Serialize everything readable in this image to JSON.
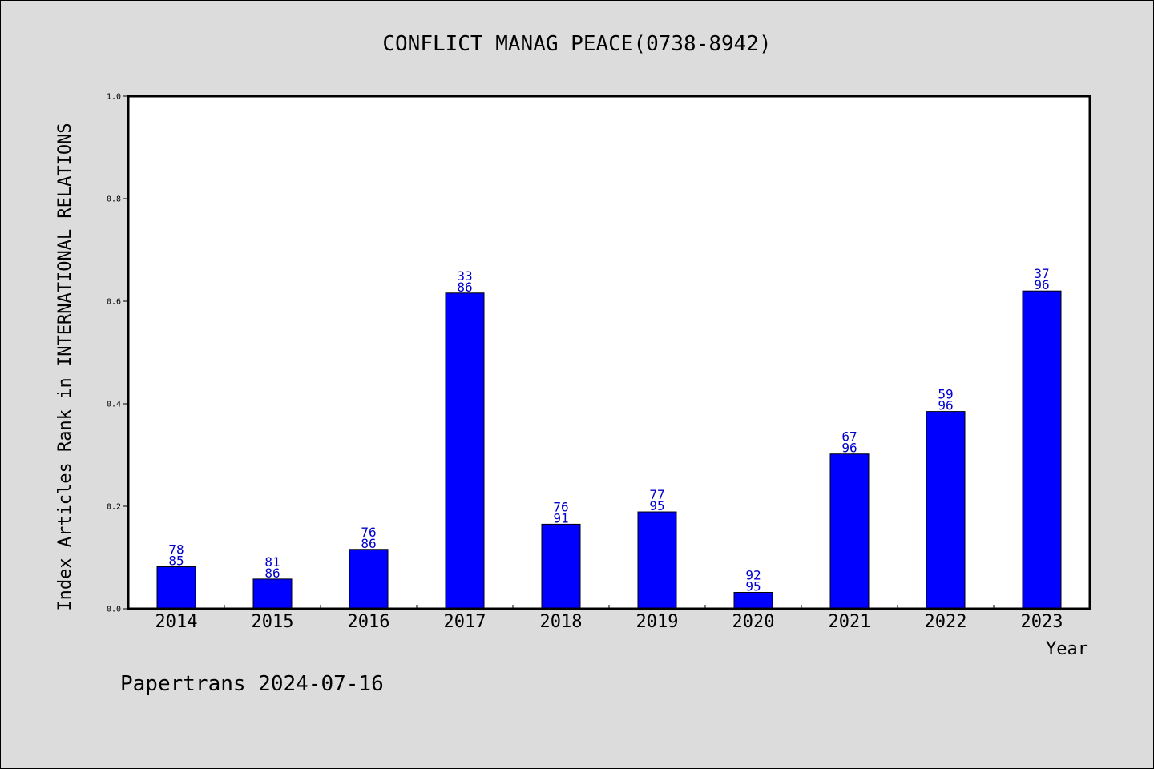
{
  "chart_data": {
    "type": "bar",
    "title": "CONFLICT MANAG PEACE(0738-8942)",
    "xlabel": "Year",
    "ylabel": "Index Articles Rank in INTERNATIONAL RELATIONS",
    "categories": [
      "2014",
      "2015",
      "2016",
      "2017",
      "2018",
      "2019",
      "2020",
      "2021",
      "2022",
      "2023"
    ],
    "values": [
      0.082,
      0.058,
      0.116,
      0.616,
      0.165,
      0.189,
      0.032,
      0.302,
      0.385,
      0.62
    ],
    "bar_labels": [
      {
        "rank": "78",
        "total": "85"
      },
      {
        "rank": "81",
        "total": "86"
      },
      {
        "rank": "76",
        "total": "86"
      },
      {
        "rank": "33",
        "total": "86"
      },
      {
        "rank": "76",
        "total": "91"
      },
      {
        "rank": "77",
        "total": "95"
      },
      {
        "rank": "92",
        "total": "95"
      },
      {
        "rank": "67",
        "total": "96"
      },
      {
        "rank": "59",
        "total": "96"
      },
      {
        "rank": "37",
        "total": "96"
      }
    ],
    "yticks": [
      "0.0",
      "0.2",
      "0.4",
      "0.6",
      "0.8",
      "1.0"
    ],
    "ylim": [
      0,
      1.0
    ],
    "bar_color": "#0000ff",
    "label_color": "#0000cc",
    "grid": false
  },
  "footer": "Papertrans 2024-07-16"
}
